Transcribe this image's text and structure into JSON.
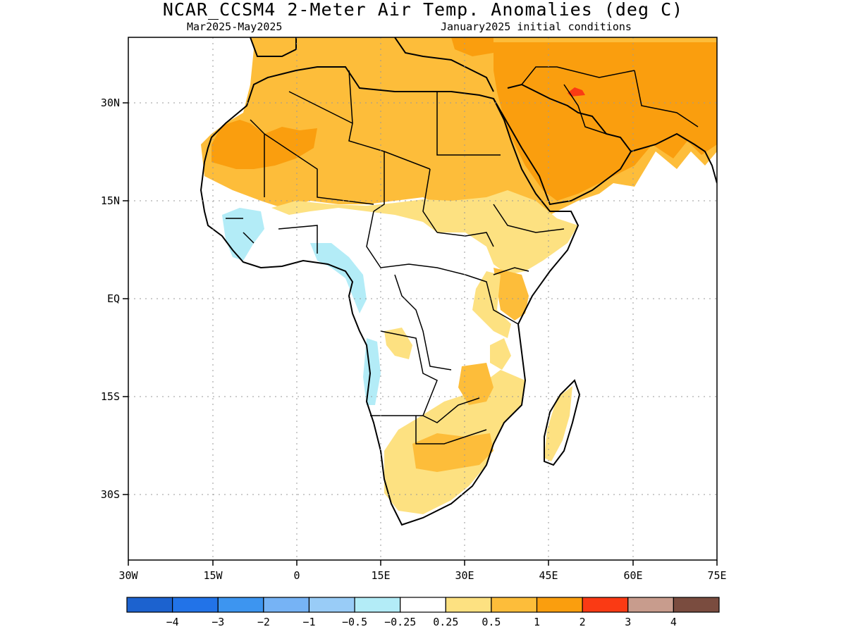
{
  "title": "NCAR_CCSM4 2-Meter Air Temp. Anomalies (deg C)",
  "subtitle_left": "Mar2025-May2025",
  "subtitle_right": "January2025 initial conditions",
  "axes": {
    "lon_ticks": [
      "30W",
      "15W",
      "0",
      "15E",
      "30E",
      "45E",
      "60E",
      "75E"
    ],
    "lat_ticks": [
      "30N",
      "15N",
      "EQ",
      "15S",
      "30S"
    ]
  },
  "colorbar": {
    "colors": [
      "#1c62cf",
      "#2273e8",
      "#3d95f0",
      "#76b3f5",
      "#99ccf7",
      "#b3ecf7",
      "#ffffff",
      "#fde181",
      "#fdbd3a",
      "#fa9e0e",
      "#fa3a14",
      "#c89c8d",
      "#7a4c3f"
    ],
    "labels": [
      "-4",
      "-3",
      "-2",
      "-1",
      "-0.5",
      "-0.25",
      "0.25",
      "0.5",
      "1",
      "2",
      "3",
      "4"
    ]
  }
}
